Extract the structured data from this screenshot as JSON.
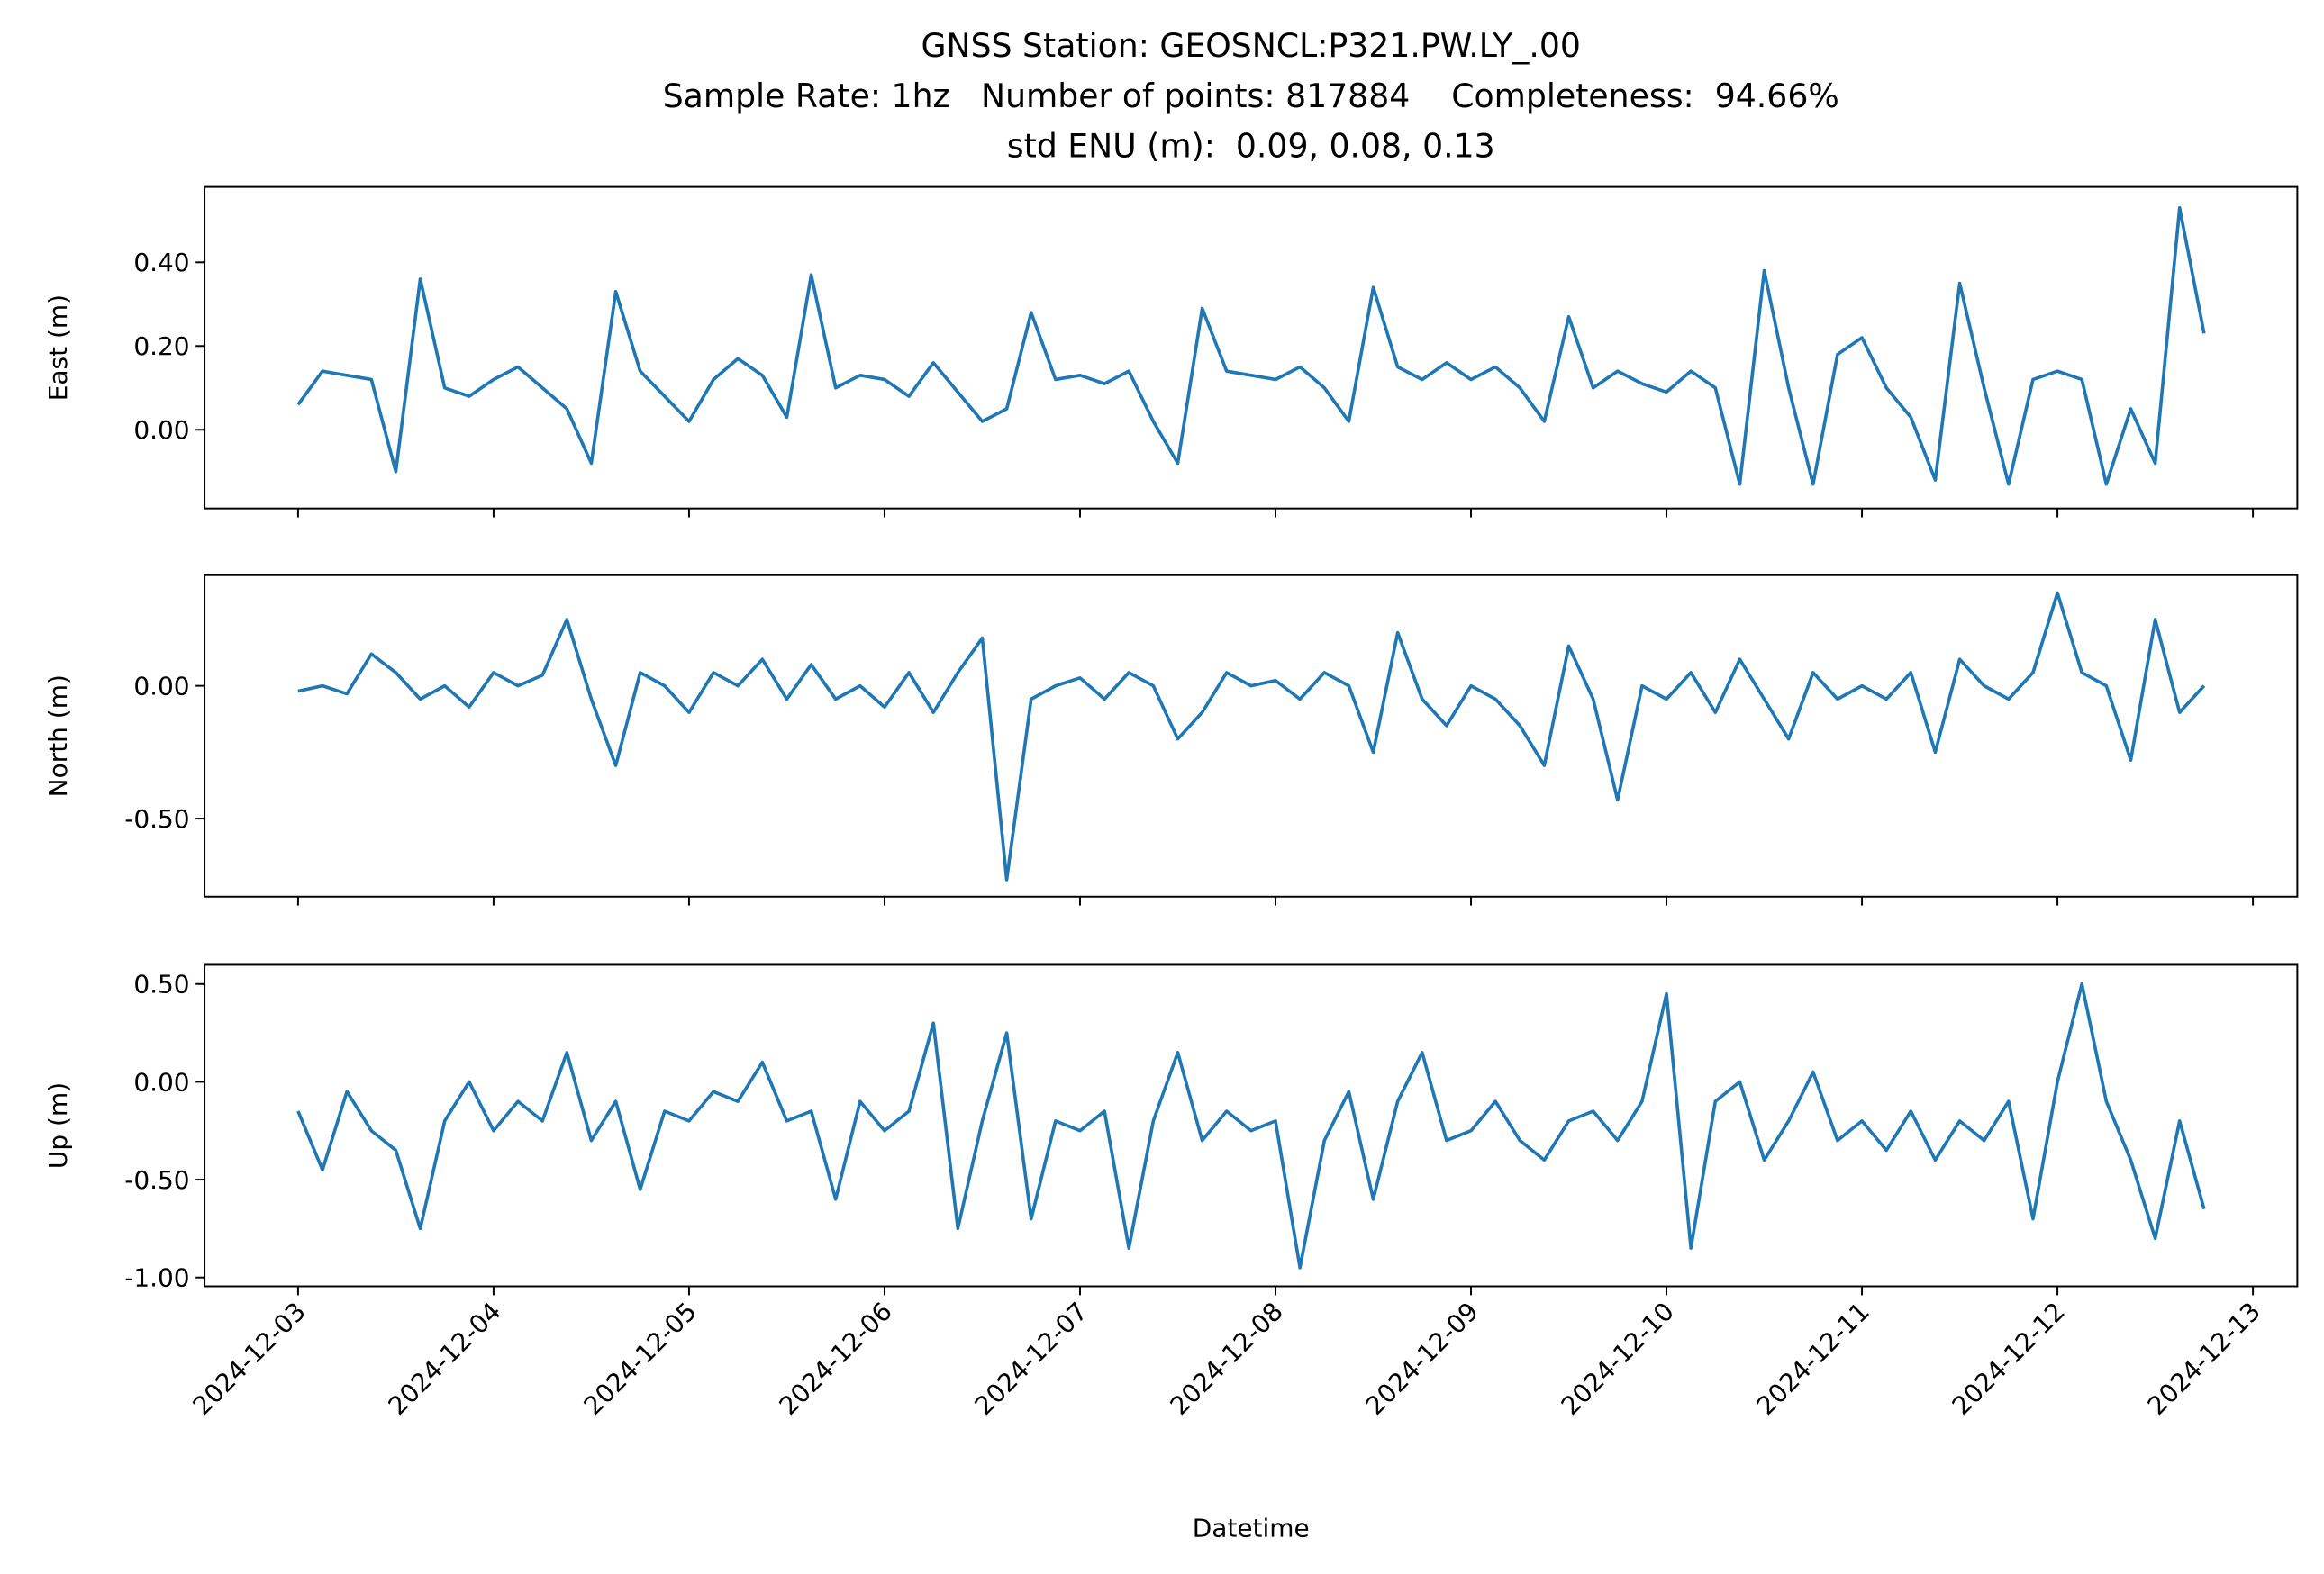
{
  "chart_data": [
    {
      "type": "line",
      "title": "GNSS Station: GEOSNCL:P321.PW.LY_.00",
      "subtitle": [
        "Sample Rate: 1hz   Number of points: 817884    Completeness:  94.66%",
        "std ENU (m):  0.09, 0.08, 0.13"
      ],
      "ylabel": "East (m)",
      "color": "#1f77b4",
      "ylim": [
        -0.188,
        0.58
      ],
      "yticks": [
        {
          "value": 0.0,
          "label": "0.00"
        },
        {
          "value": 0.2,
          "label": "0.20"
        },
        {
          "value": 0.4,
          "label": "0.40"
        }
      ],
      "values": [
        0.06,
        0.14,
        0.13,
        0.12,
        -0.1,
        0.36,
        0.1,
        0.08,
        0.12,
        0.15,
        0.1,
        0.05,
        -0.08,
        0.33,
        0.14,
        0.08,
        0.02,
        0.12,
        0.17,
        0.13,
        0.03,
        0.37,
        0.1,
        0.13,
        0.12,
        0.08,
        0.16,
        0.09,
        0.02,
        0.05,
        0.28,
        0.12,
        0.13,
        0.11,
        0.14,
        0.02,
        -0.08,
        0.29,
        0.14,
        0.13,
        0.12,
        0.15,
        0.1,
        0.02,
        0.34,
        0.15,
        0.12,
        0.16,
        0.12,
        0.15,
        0.1,
        0.02,
        0.27,
        0.1,
        0.14,
        0.11,
        0.09,
        0.14,
        0.1,
        -0.13,
        0.38,
        0.1,
        -0.13,
        0.18,
        0.22,
        0.1,
        0.03,
        -0.12,
        0.35,
        0.1,
        -0.13,
        0.12,
        0.14,
        0.12,
        -0.13,
        0.05,
        -0.08,
        0.53,
        0.23
      ]
    },
    {
      "type": "line",
      "ylabel": "North (m)",
      "color": "#1f77b4",
      "ylim": [
        -0.794,
        0.417
      ],
      "yticks": [
        {
          "value": -0.5,
          "label": "-0.50"
        },
        {
          "value": 0.0,
          "label": "0.00"
        }
      ],
      "values": [
        -0.02,
        0.0,
        -0.03,
        0.12,
        0.05,
        -0.05,
        0.0,
        -0.08,
        0.05,
        0.0,
        0.04,
        0.25,
        -0.05,
        -0.3,
        0.05,
        0.0,
        -0.1,
        0.05,
        0.0,
        0.1,
        -0.05,
        0.08,
        -0.05,
        0.0,
        -0.08,
        0.05,
        -0.1,
        0.05,
        0.18,
        -0.73,
        -0.05,
        0.0,
        0.03,
        -0.05,
        0.05,
        0.0,
        -0.2,
        -0.1,
        0.05,
        0.0,
        0.02,
        -0.05,
        0.05,
        0.0,
        -0.25,
        0.2,
        -0.05,
        -0.15,
        0.0,
        -0.05,
        -0.15,
        -0.3,
        0.15,
        -0.05,
        -0.43,
        0.0,
        -0.05,
        0.05,
        -0.1,
        0.1,
        -0.05,
        -0.2,
        0.05,
        -0.05,
        0.0,
        -0.05,
        0.05,
        -0.25,
        0.1,
        0.0,
        -0.05,
        0.05,
        0.35,
        0.05,
        0.0,
        -0.28,
        0.25,
        -0.1,
        0.0
      ]
    },
    {
      "type": "line",
      "ylabel": "Up (m)",
      "xlabel": "Datetime",
      "color": "#1f77b4",
      "ylim": [
        -1.045,
        0.598
      ],
      "yticks": [
        {
          "value": -1.0,
          "label": "-1.00"
        },
        {
          "value": -0.5,
          "label": "-0.50"
        },
        {
          "value": 0.0,
          "label": "0.00"
        },
        {
          "value": 0.5,
          "label": "0.50"
        }
      ],
      "xlim": [
        "2024-12-02T12:31",
        "2024-12-13T05:27"
      ],
      "xticks": [
        "2024-12-03",
        "2024-12-04",
        "2024-12-05",
        "2024-12-06",
        "2024-12-07",
        "2024-12-08",
        "2024-12-09",
        "2024-12-10",
        "2024-12-11",
        "2024-12-12",
        "2024-12-13"
      ],
      "x": [
        "2024-12-03T00:00",
        "2024-12-03T03:00",
        "2024-12-03T06:00",
        "2024-12-03T09:00",
        "2024-12-03T12:00",
        "2024-12-03T15:00",
        "2024-12-03T18:00",
        "2024-12-03T21:00",
        "2024-12-04T00:00",
        "2024-12-04T03:00",
        "2024-12-04T06:00",
        "2024-12-04T09:00",
        "2024-12-04T12:00",
        "2024-12-04T15:00",
        "2024-12-04T18:00",
        "2024-12-04T21:00",
        "2024-12-05T00:00",
        "2024-12-05T03:00",
        "2024-12-05T06:00",
        "2024-12-05T09:00",
        "2024-12-05T12:00",
        "2024-12-05T15:00",
        "2024-12-05T18:00",
        "2024-12-05T21:00",
        "2024-12-06T00:00",
        "2024-12-06T03:00",
        "2024-12-06T06:00",
        "2024-12-06T09:00",
        "2024-12-06T12:00",
        "2024-12-06T15:00",
        "2024-12-06T18:00",
        "2024-12-06T21:00",
        "2024-12-07T00:00",
        "2024-12-07T03:00",
        "2024-12-07T06:00",
        "2024-12-07T09:00",
        "2024-12-07T12:00",
        "2024-12-07T15:00",
        "2024-12-07T18:00",
        "2024-12-07T21:00",
        "2024-12-08T00:00",
        "2024-12-08T03:00",
        "2024-12-08T06:00",
        "2024-12-08T09:00",
        "2024-12-08T12:00",
        "2024-12-08T15:00",
        "2024-12-08T18:00",
        "2024-12-08T21:00",
        "2024-12-09T00:00",
        "2024-12-09T03:00",
        "2024-12-09T06:00",
        "2024-12-09T09:00",
        "2024-12-09T12:00",
        "2024-12-09T15:00",
        "2024-12-09T18:00",
        "2024-12-09T21:00",
        "2024-12-10T00:00",
        "2024-12-10T03:00",
        "2024-12-10T06:00",
        "2024-12-10T09:00",
        "2024-12-10T12:00",
        "2024-12-10T15:00",
        "2024-12-10T18:00",
        "2024-12-10T21:00",
        "2024-12-11T00:00",
        "2024-12-11T03:00",
        "2024-12-11T06:00",
        "2024-12-11T09:00",
        "2024-12-11T12:00",
        "2024-12-11T15:00",
        "2024-12-11T18:00",
        "2024-12-11T21:00",
        "2024-12-12T00:00",
        "2024-12-12T03:00",
        "2024-12-12T06:00",
        "2024-12-12T09:00",
        "2024-12-12T12:00",
        "2024-12-12T15:00",
        "2024-12-12T18:00"
      ],
      "values": [
        -0.15,
        -0.45,
        -0.05,
        -0.25,
        -0.35,
        -0.75,
        -0.2,
        0.0,
        -0.25,
        -0.1,
        -0.2,
        0.15,
        -0.3,
        -0.1,
        -0.55,
        -0.15,
        -0.2,
        -0.05,
        -0.1,
        0.1,
        -0.2,
        -0.15,
        -0.6,
        -0.1,
        -0.25,
        -0.15,
        0.3,
        -0.75,
        -0.2,
        0.25,
        -0.7,
        -0.2,
        -0.25,
        -0.15,
        -0.85,
        -0.2,
        0.15,
        -0.3,
        -0.15,
        -0.25,
        -0.2,
        -0.95,
        -0.3,
        -0.05,
        -0.6,
        -0.1,
        0.15,
        -0.3,
        -0.25,
        -0.1,
        -0.3,
        -0.4,
        -0.2,
        -0.15,
        -0.3,
        -0.1,
        0.45,
        -0.85,
        -0.1,
        0.0,
        -0.4,
        -0.2,
        0.05,
        -0.3,
        -0.2,
        -0.35,
        -0.15,
        -0.4,
        -0.2,
        -0.3,
        -0.1,
        -0.7,
        0.0,
        0.5,
        -0.1,
        -0.4,
        -0.8,
        -0.2,
        -0.65
      ]
    }
  ]
}
